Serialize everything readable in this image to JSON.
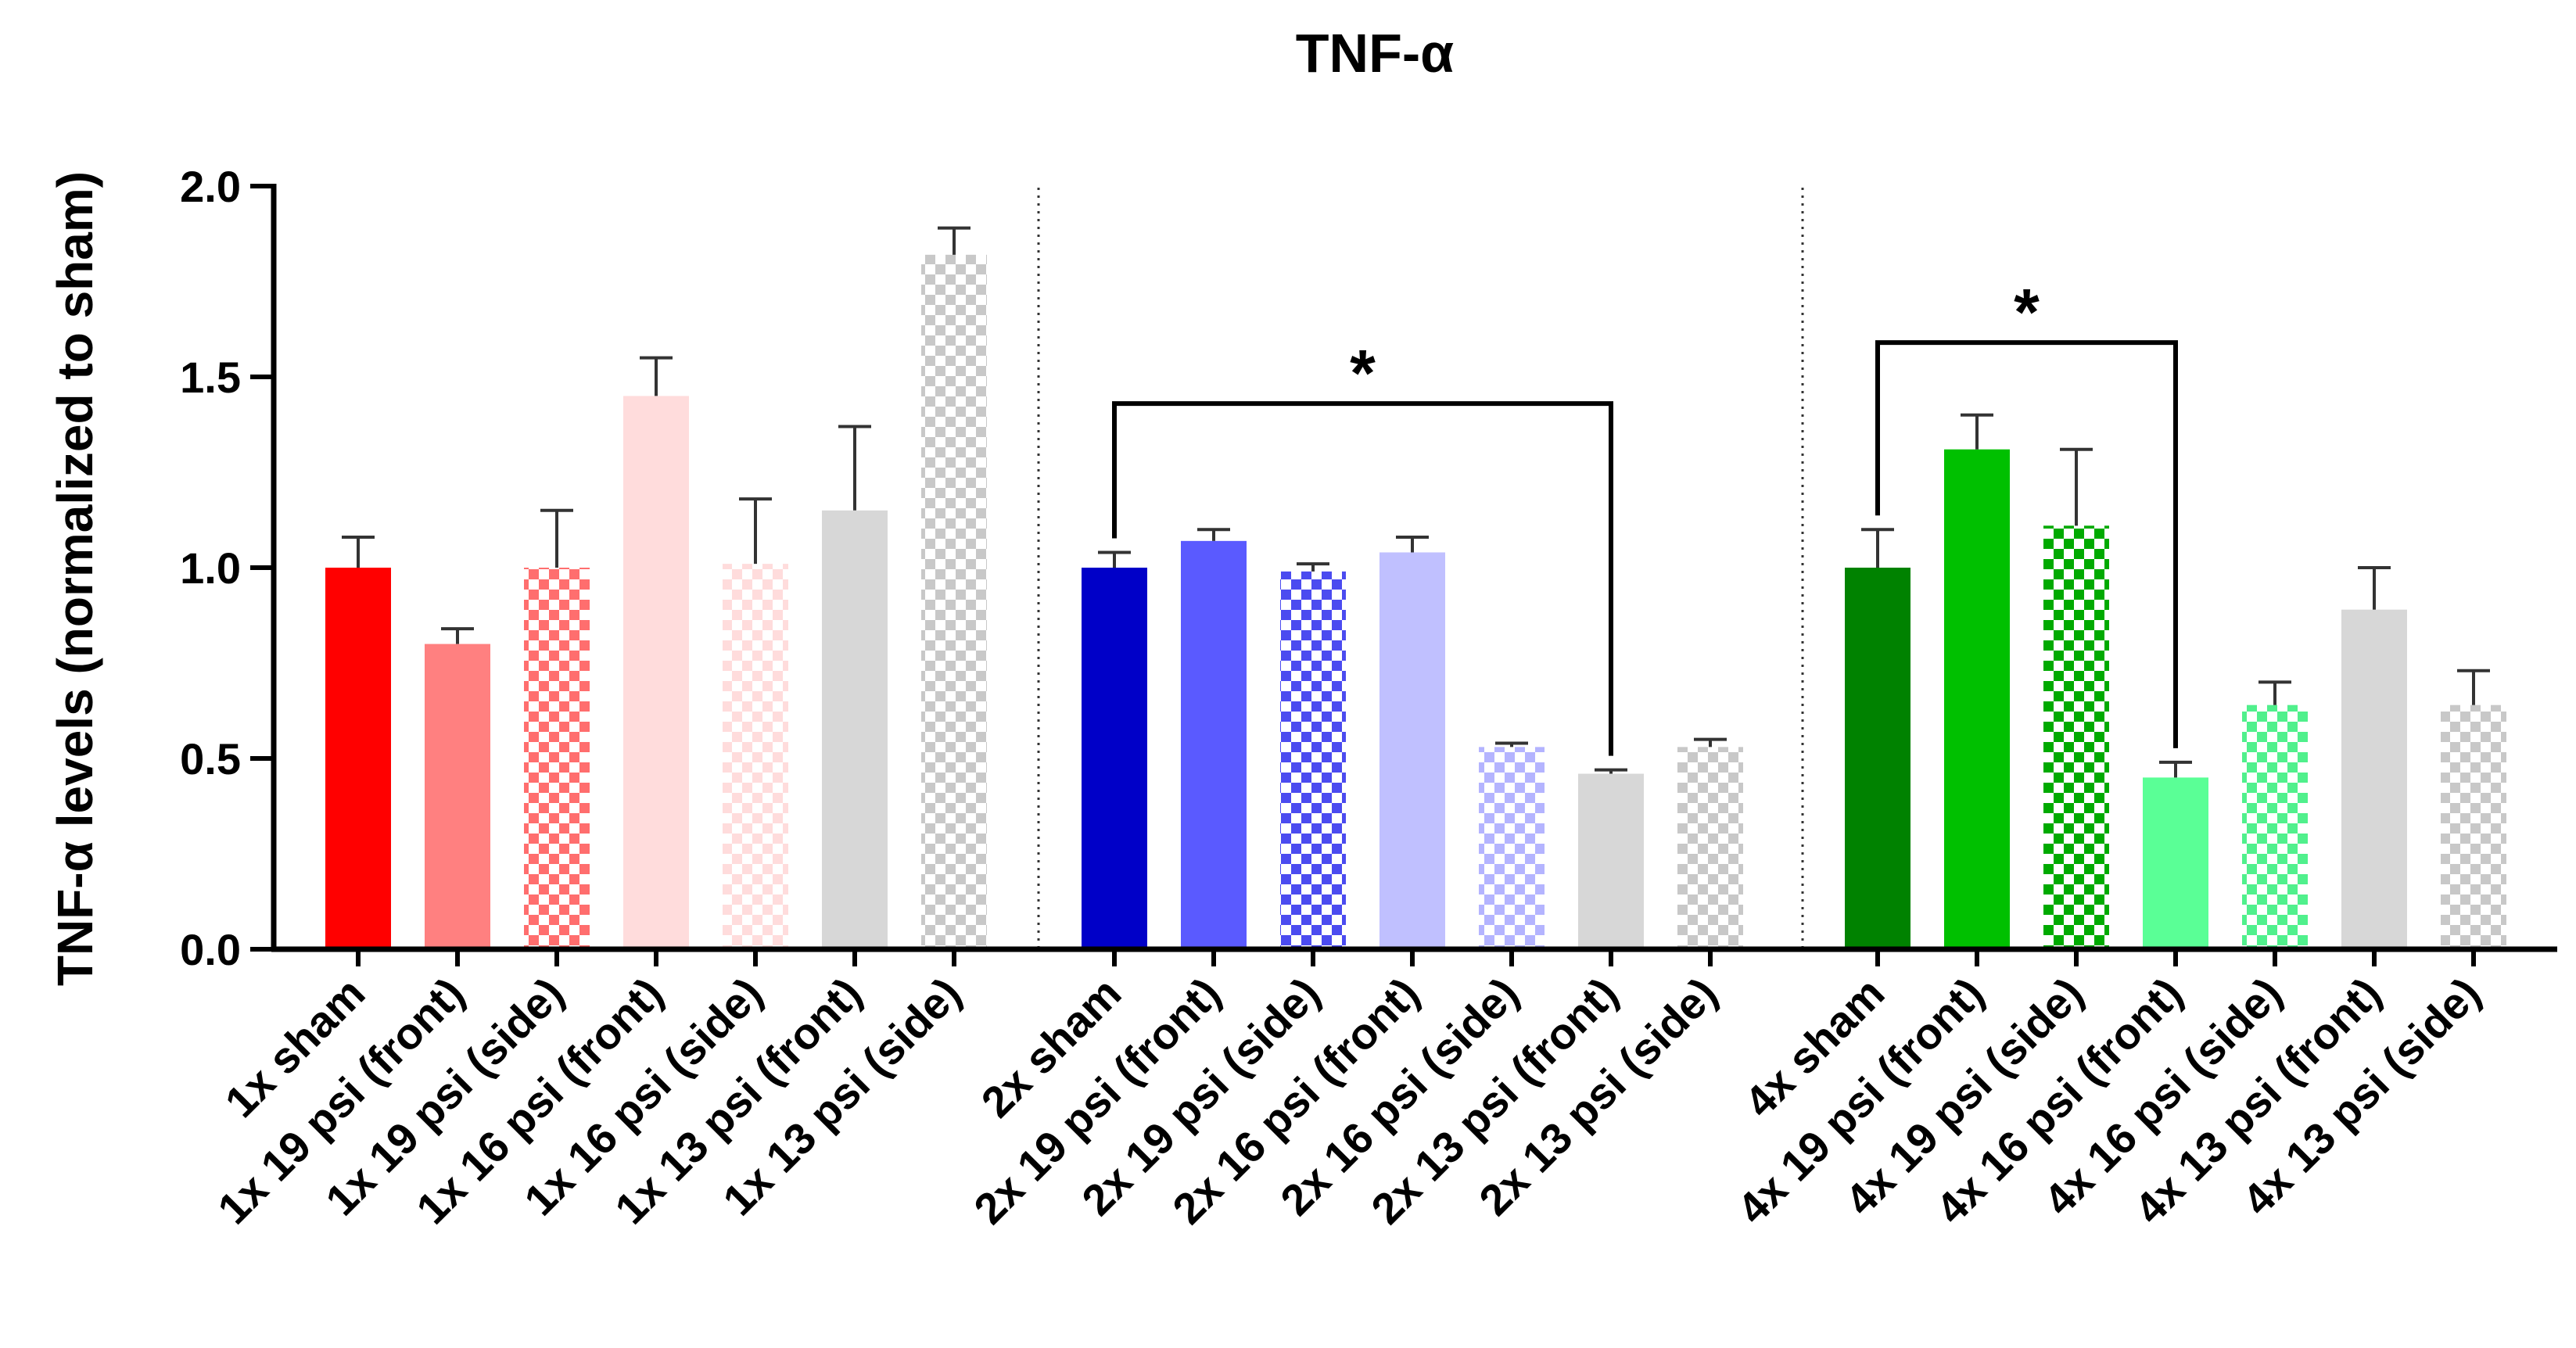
{
  "chart_data": {
    "type": "bar",
    "title": "TNF-α",
    "xlabel": "",
    "ylabel": "TNF-α levels (normalized to sham)",
    "ylim": [
      0,
      2.0
    ],
    "yticks": [
      "0.0",
      "0.5",
      "1.0",
      "1.5",
      "2.0"
    ],
    "grid": false,
    "groups": [
      {
        "name": "1x",
        "bars": [
          {
            "label": "1x sham",
            "value": 1.0,
            "error": 0.08,
            "color": "#ff0000",
            "pattern": "solid"
          },
          {
            "label": "1x 19 psi (front)",
            "value": 0.8,
            "error": 0.04,
            "color": "#ff8080",
            "pattern": "solid"
          },
          {
            "label": "1x 19 psi (side)",
            "value": 1.0,
            "error": 0.15,
            "color": "#ff6e6e",
            "pattern": "checker"
          },
          {
            "label": "1x 16 psi (front)",
            "value": 1.45,
            "error": 0.1,
            "color": "#ffdcdc",
            "pattern": "solid"
          },
          {
            "label": "1x 16 psi (side)",
            "value": 1.01,
            "error": 0.17,
            "color": "#ffdcdc",
            "pattern": "checker"
          },
          {
            "label": "1x 13 psi (front)",
            "value": 1.15,
            "error": 0.22,
            "color": "#d7d7d7",
            "pattern": "solid"
          },
          {
            "label": "1x 13 psi (side)",
            "value": 1.82,
            "error": 0.07,
            "color": "#c8c8c8",
            "pattern": "checker"
          }
        ]
      },
      {
        "name": "2x",
        "bars": [
          {
            "label": "2x sham",
            "value": 1.0,
            "error": 0.04,
            "color": "#0000c8",
            "pattern": "solid"
          },
          {
            "label": "2x 19 psi (front)",
            "value": 1.07,
            "error": 0.03,
            "color": "#5a5aff",
            "pattern": "solid"
          },
          {
            "label": "2x 19 psi (side)",
            "value": 0.99,
            "error": 0.02,
            "color": "#4b4bf0",
            "pattern": "checker"
          },
          {
            "label": "2x 16 psi (front)",
            "value": 1.04,
            "error": 0.04,
            "color": "#c0c0ff",
            "pattern": "solid"
          },
          {
            "label": "2x 16 psi (side)",
            "value": 0.53,
            "error": 0.01,
            "color": "#b4b4ff",
            "pattern": "checker"
          },
          {
            "label": "2x 13 psi (front)",
            "value": 0.46,
            "error": 0.01,
            "color": "#d7d7d7",
            "pattern": "solid"
          },
          {
            "label": "2x 13 psi (side)",
            "value": 0.53,
            "error": 0.02,
            "color": "#c8c8c8",
            "pattern": "checker"
          }
        ]
      },
      {
        "name": "4x",
        "bars": [
          {
            "label": "4x sham",
            "value": 1.0,
            "error": 0.1,
            "color": "#008200",
            "pattern": "solid"
          },
          {
            "label": "4x 19 psi (front)",
            "value": 1.31,
            "error": 0.09,
            "color": "#00c000",
            "pattern": "solid"
          },
          {
            "label": "4x 19 psi (side)",
            "value": 1.11,
            "error": 0.2,
            "color": "#00aa00",
            "pattern": "checker"
          },
          {
            "label": "4x 16 psi (front)",
            "value": 0.45,
            "error": 0.04,
            "color": "#5aff96",
            "pattern": "solid"
          },
          {
            "label": "4x 16 psi (side)",
            "value": 0.64,
            "error": 0.06,
            "color": "#50f08c",
            "pattern": "checker"
          },
          {
            "label": "4x 13 psi (front)",
            "value": 0.89,
            "error": 0.11,
            "color": "#d7d7d7",
            "pattern": "solid"
          },
          {
            "label": "4x 13 psi (side)",
            "value": 0.64,
            "error": 0.09,
            "color": "#c8c8c8",
            "pattern": "checker"
          }
        ]
      }
    ],
    "annotations": [
      {
        "text": "*",
        "from": "2x sham",
        "to": "2x 13 psi (front)",
        "bracket_y": 1.43
      },
      {
        "text": "*",
        "from": "4x sham",
        "to": "4x 16 psi (front)",
        "bracket_y": 1.59
      }
    ]
  }
}
